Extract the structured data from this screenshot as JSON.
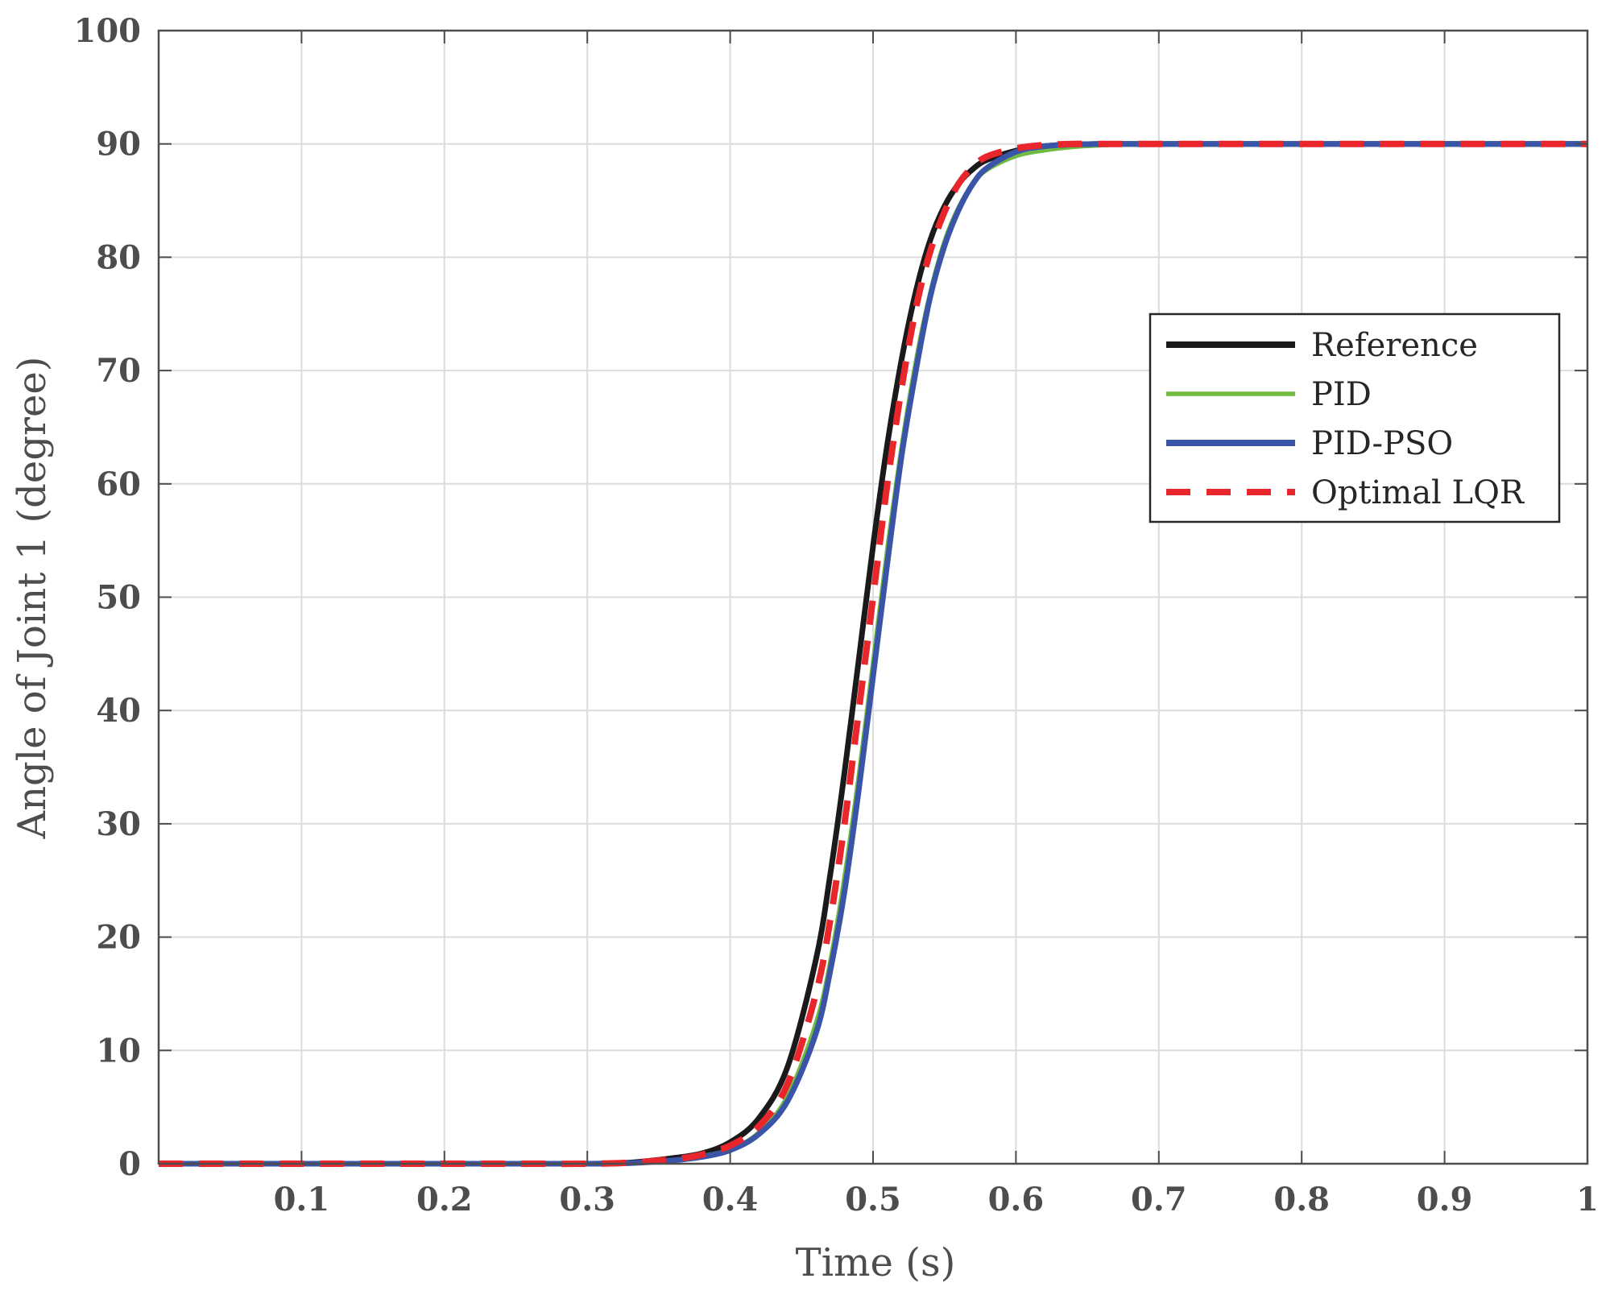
{
  "chart_data": {
    "type": "line",
    "xlabel": "Time (s)",
    "ylabel": "Angle of Joint 1 (degree)",
    "xlim": [
      0,
      1
    ],
    "ylim": [
      0,
      100
    ],
    "xticks": [
      0.1,
      0.2,
      0.3,
      0.4,
      0.5,
      0.6,
      0.7,
      0.8,
      0.9,
      1
    ],
    "xtick_labels": [
      "0.1",
      "0.2",
      "0.3",
      "0.4",
      "0.5",
      "0.6",
      "0.7",
      "0.8",
      "0.9",
      "1"
    ],
    "yticks": [
      0,
      10,
      20,
      30,
      40,
      50,
      60,
      70,
      80,
      90,
      100
    ],
    "ytick_labels": [
      "0",
      "10",
      "20",
      "30",
      "40",
      "50",
      "60",
      "70",
      "80",
      "90",
      "100"
    ],
    "grid": true,
    "legend_position": "top-right",
    "x": [
      0,
      0.05,
      0.1,
      0.15,
      0.2,
      0.25,
      0.3,
      0.33,
      0.36,
      0.38,
      0.4,
      0.42,
      0.44,
      0.46,
      0.47,
      0.48,
      0.49,
      0.5,
      0.51,
      0.52,
      0.53,
      0.54,
      0.55,
      0.56,
      0.57,
      0.58,
      0.6,
      0.62,
      0.64,
      0.66,
      0.68,
      0.7,
      0.75,
      0.8,
      0.85,
      0.9,
      0.95,
      1
    ],
    "series": [
      {
        "name": "Reference",
        "color": "#1a1a1a",
        "dash": "solid",
        "values": [
          0,
          0,
          0,
          0,
          0,
          0,
          0,
          0.1,
          0.5,
          0.9,
          1.9,
          4,
          8.5,
          18,
          25.5,
          34.5,
          44.5,
          54.5,
          63.5,
          71,
          77,
          81.5,
          84.5,
          86.5,
          87.8,
          88.6,
          89.4,
          89.8,
          89.95,
          90,
          90,
          90,
          90,
          90,
          90,
          90,
          90,
          90
        ]
      },
      {
        "name": "PID",
        "color": "#6fba3f",
        "dash": "solid",
        "values": [
          0,
          0,
          0,
          0,
          0,
          0,
          0,
          0.05,
          0.3,
          0.7,
          1.3,
          2.8,
          6,
          12.5,
          18,
          25.5,
          34.5,
          44.5,
          54.5,
          63.5,
          71,
          77,
          81.5,
          84.5,
          86.5,
          87.7,
          88.9,
          89.4,
          89.7,
          89.85,
          89.95,
          90,
          90,
          90,
          90,
          90,
          90,
          90
        ]
      },
      {
        "name": "PID-PSO",
        "color": "#3a55a8",
        "dash": "solid",
        "values": [
          0,
          0,
          0,
          0,
          0,
          0,
          0,
          0.05,
          0.3,
          0.6,
          1.2,
          2.6,
          5.5,
          11.5,
          17,
          24,
          33,
          43,
          53,
          62.5,
          70,
          76.5,
          81,
          84.2,
          86.5,
          87.9,
          89.3,
          89.8,
          89.95,
          90,
          90,
          90,
          90,
          90,
          90,
          90,
          90,
          90
        ]
      },
      {
        "name": "Optimal LQR",
        "color": "#e8262b",
        "dash": "dashed",
        "values": [
          0,
          0,
          0,
          0,
          0,
          0,
          0,
          0.1,
          0.4,
          0.8,
          1.6,
          3.3,
          7,
          15,
          21.5,
          30,
          40,
          50,
          60,
          68.5,
          75.5,
          80.5,
          84,
          86.5,
          88,
          88.9,
          89.6,
          89.9,
          90,
          90,
          90,
          90,
          90,
          90,
          90,
          90,
          90,
          90
        ]
      }
    ]
  }
}
